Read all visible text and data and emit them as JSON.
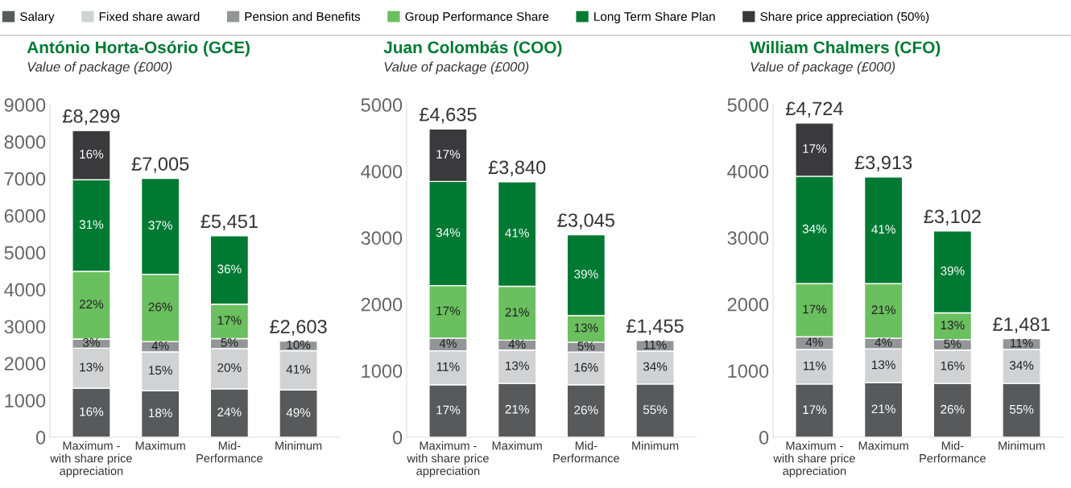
{
  "chart_data": [
    {
      "type": "bar",
      "stacked": true,
      "title": "António Horta-Osório (GCE)",
      "subtitle": "Value of package (£000)",
      "legend": "top",
      "categories": [
        "Maximum -\nwith share price\nappreciation",
        "Maximum",
        "Mid-\nPerformance",
        "Minimum"
      ],
      "ylim": [
        0,
        9000
      ],
      "yticks": [
        0,
        1000,
        2000,
        3000,
        4000,
        5000,
        6000,
        7000,
        8000,
        9000
      ],
      "grid": false,
      "series": [
        {
          "name": "Salary",
          "color": "#58595b",
          "values": [
            1330,
            1260,
            1310,
            1280
          ]
        },
        {
          "name": "Fixed share award",
          "color": "#d1d2d4",
          "values": [
            1080,
            1050,
            1090,
            1063
          ]
        },
        {
          "name": "Pension and Benefits",
          "color": "#939598",
          "values": [
            250,
            280,
            270,
            260
          ]
        },
        {
          "name": "Group Performance Share",
          "color": "#6abf5e",
          "values": [
            1830,
            1820,
            930,
            null
          ]
        },
        {
          "name": "Long Term Share Plan",
          "color": "#007a33",
          "values": [
            2479,
            2595,
            1851,
            null
          ]
        },
        {
          "name": "Share price appreciation (50%)",
          "color": "#3a3a3c",
          "values": [
            1330,
            null,
            null,
            null
          ]
        }
      ],
      "totals": [
        "£8,299",
        "£7,005",
        "£5,451",
        "£2,603"
      ],
      "annotations": [
        "16%",
        "13%",
        "3%",
        "22%",
        "31%",
        "16%",
        "18%",
        "15%",
        "4%",
        "26%",
        "37%",
        "24%",
        "20%",
        "5%",
        "17%",
        "36%",
        "49%",
        "41%",
        "10%"
      ]
    },
    {
      "type": "bar",
      "stacked": true,
      "title": "Juan Colombás (COO)",
      "subtitle": "Value of package (£000)",
      "categories": [
        "Maximum -\nwith share price\nappreciation",
        "Maximum",
        "Mid-\nPerformance",
        "Minimum"
      ],
      "ylim": [
        0,
        5000
      ],
      "yticks": [
        0,
        1000,
        2000,
        3000,
        4000,
        5000
      ],
      "grid": false,
      "series": [
        {
          "color": "#58595b",
          "values": [
            790,
            810,
            790,
            800
          ]
        },
        {
          "color": "#d1d2d4",
          "values": [
            510,
            500,
            490,
            495
          ]
        },
        {
          "color": "#939598",
          "values": [
            190,
            150,
            150,
            160
          ]
        },
        {
          "color": "#6abf5e",
          "values": [
            790,
            810,
            400,
            null
          ]
        },
        {
          "color": "#007a33",
          "values": [
            1565,
            1570,
            1215,
            null
          ]
        },
        {
          "color": "#3a3a3c",
          "values": [
            790,
            null,
            null,
            null
          ]
        }
      ],
      "totals": [
        "£4,635",
        "£3,840",
        "£3,045",
        "£1,455"
      ],
      "annotations": [
        "17%",
        "11%",
        "4%",
        "17%",
        "34%",
        "17%",
        "21%",
        "13%",
        "4%",
        "21%",
        "41%",
        "26%",
        "16%",
        "5%",
        "13%",
        "39%",
        "55%",
        "34%",
        "11%"
      ]
    },
    {
      "type": "bar",
      "stacked": true,
      "title": "William Chalmers (CFO)",
      "subtitle": "Value of package (£000)",
      "categories": [
        "Maximum -\nwith share price\nappreciation",
        "Maximum",
        "Mid-\nPerformance",
        "Minimum"
      ],
      "ylim": [
        0,
        5000
      ],
      "yticks": [
        0,
        1000,
        2000,
        3000,
        4000,
        5000
      ],
      "grid": false,
      "series": [
        {
          "color": "#58595b",
          "values": [
            800,
            820,
            810,
            810
          ]
        },
        {
          "color": "#d1d2d4",
          "values": [
            520,
            510,
            500,
            511
          ]
        },
        {
          "color": "#939598",
          "values": [
            190,
            160,
            160,
            160
          ]
        },
        {
          "color": "#6abf5e",
          "values": [
            800,
            820,
            400,
            null
          ]
        },
        {
          "color": "#007a33",
          "values": [
            1614,
            1603,
            1232,
            null
          ]
        },
        {
          "color": "#3a3a3c",
          "values": [
            800,
            null,
            null,
            null
          ]
        }
      ],
      "totals": [
        "£4,724",
        "£3,913",
        "£3,102",
        "£1,481"
      ],
      "annotations": [
        "17%",
        "11%",
        "4%",
        "17%",
        "34%",
        "17%",
        "21%",
        "13%",
        "4%",
        "21%",
        "41%",
        "26%",
        "16%",
        "5%",
        "13%",
        "39%",
        "55%",
        "34%",
        "11%"
      ]
    }
  ]
}
